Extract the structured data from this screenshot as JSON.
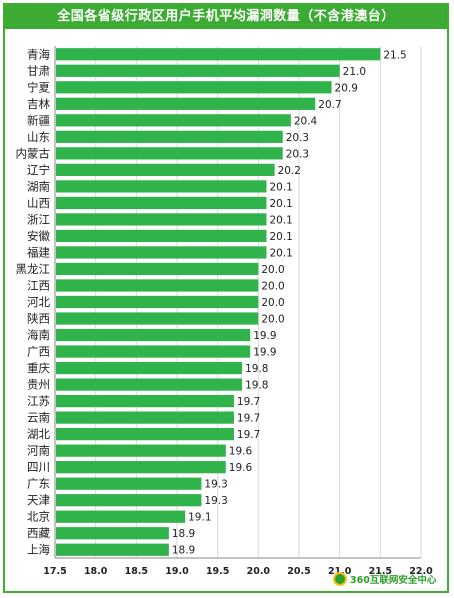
{
  "chart_data": {
    "type": "bar",
    "orientation": "horizontal",
    "title": "全国各省级行政区用户手机平均漏洞数量（不含港澳台）",
    "categories": [
      "青海",
      "甘肃",
      "宁夏",
      "吉林",
      "新疆",
      "山东",
      "内蒙古",
      "辽宁",
      "湖南",
      "山西",
      "浙江",
      "安徽",
      "福建",
      "黑龙江",
      "江西",
      "河北",
      "陕西",
      "海南",
      "广西",
      "重庆",
      "贵州",
      "江苏",
      "云南",
      "湖北",
      "河南",
      "四川",
      "广东",
      "天津",
      "北京",
      "西藏",
      "上海"
    ],
    "values": [
      21.5,
      21.0,
      20.9,
      20.7,
      20.4,
      20.3,
      20.3,
      20.2,
      20.1,
      20.1,
      20.1,
      20.1,
      20.1,
      20.0,
      20.0,
      20.0,
      20.0,
      19.9,
      19.9,
      19.8,
      19.8,
      19.7,
      19.7,
      19.7,
      19.6,
      19.6,
      19.3,
      19.3,
      19.1,
      18.9,
      18.9
    ],
    "value_labels": [
      "21.5",
      "21.0",
      "20.9",
      "20.7",
      "20.4",
      "20.3",
      "20.3",
      "20.2",
      "20.1",
      "20.1",
      "20.1",
      "20.1",
      "20.1",
      "20.0",
      "20.0",
      "20.0",
      "20.0",
      "19.9",
      "19.9",
      "19.8",
      "19.8",
      "19.7",
      "19.7",
      "19.7",
      "19.6",
      "19.6",
      "19.3",
      "19.3",
      "19.1",
      "18.9",
      "18.9"
    ],
    "xlim": [
      17.5,
      22.0
    ],
    "xticks": [
      "17.5",
      "18.0",
      "18.5",
      "19.0",
      "19.5",
      "20.0",
      "20.5",
      "21.0",
      "21.5",
      "22.0"
    ],
    "grid": true,
    "bar_color": "#2fb34a"
  },
  "watermark": {
    "text": "360互联网安全中心"
  },
  "colors": {
    "frame": "#3fae33",
    "title_bg": "#3cab33"
  }
}
